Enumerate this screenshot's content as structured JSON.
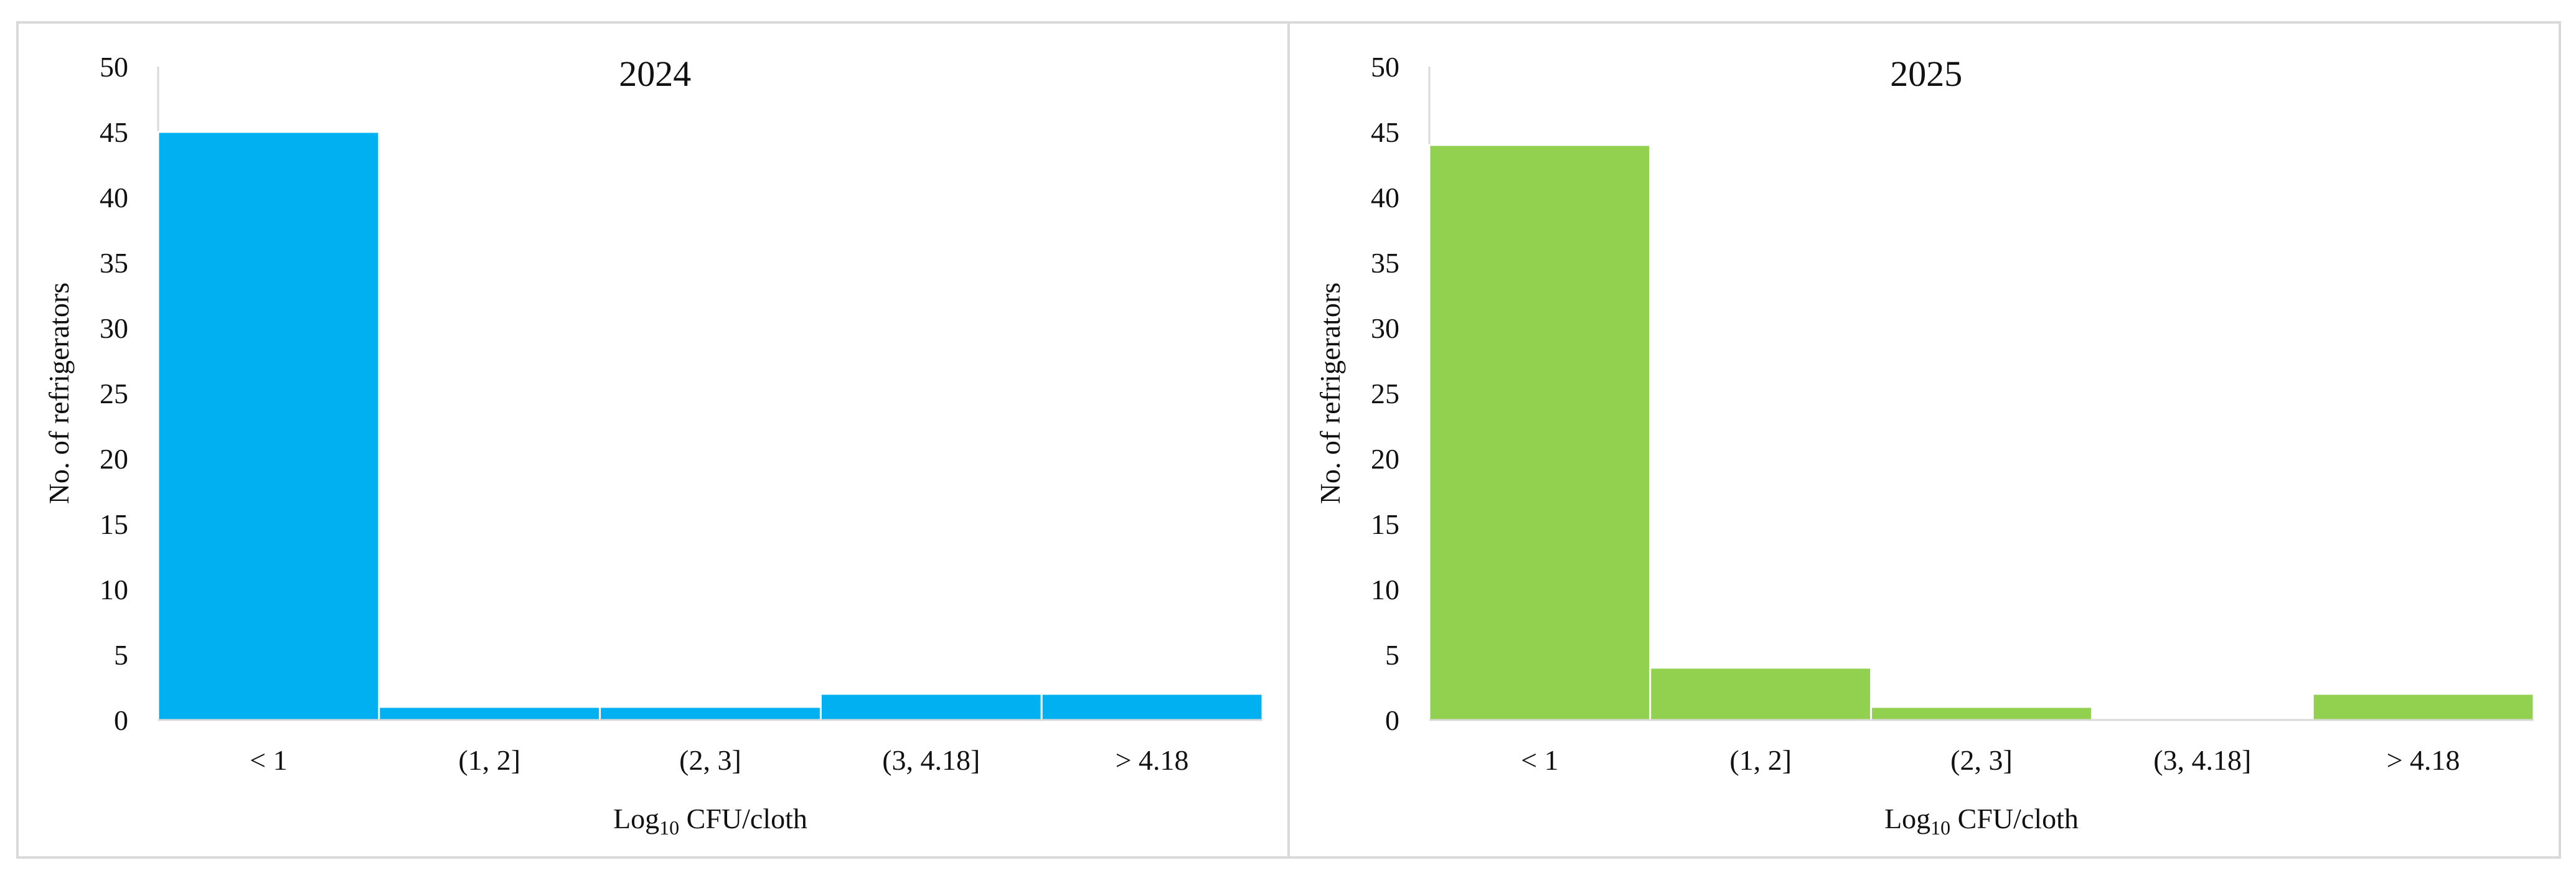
{
  "chart_data": [
    {
      "type": "bar",
      "title": "2024",
      "xlabel_main": "Log",
      "xlabel_sub": "10",
      "xlabel_rest": " CFU/cloth",
      "ylabel": "No. of refrigerators",
      "categories": [
        "< 1",
        "(1, 2]",
        "(2, 3]",
        "(3, 4.18]",
        "> 4.18"
      ],
      "values": [
        45,
        1,
        1,
        2,
        2
      ],
      "ylim": [
        0,
        50
      ],
      "yticks": [
        0,
        5,
        10,
        15,
        20,
        25,
        30,
        35,
        40,
        45,
        50
      ],
      "color": "#00B0F0",
      "grid": false,
      "legend": "none"
    },
    {
      "type": "bar",
      "title": "2025",
      "xlabel_main": "Log",
      "xlabel_sub": "10",
      "xlabel_rest": " CFU/cloth",
      "ylabel": "No. of refrigerators",
      "categories": [
        "< 1",
        "(1, 2]",
        "(2, 3]",
        "(3, 4.18]",
        "> 4.18"
      ],
      "values": [
        44,
        4,
        1,
        0,
        2
      ],
      "ylim": [
        0,
        50
      ],
      "yticks": [
        0,
        5,
        10,
        15,
        20,
        25,
        30,
        35,
        40,
        45,
        50
      ],
      "color": "#92D050",
      "grid": false,
      "legend": "none"
    }
  ]
}
